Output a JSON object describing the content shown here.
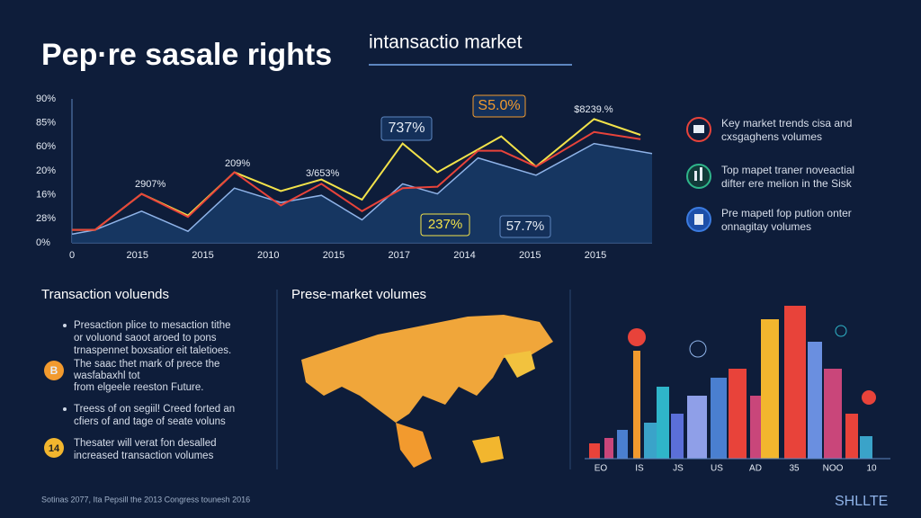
{
  "title": "Pep·re sasale rights",
  "subtitle": "intansactio market",
  "chart_data": {
    "type": "line",
    "xlim": [
      0,
      100
    ],
    "ylim": [
      0,
      100
    ],
    "x_labels": [
      "0",
      "2015",
      "2015",
      "2010",
      "2015",
      "2017",
      "2014",
      "2015",
      "2015"
    ],
    "y_labels": [
      "90%",
      "85%",
      "60%",
      "20%",
      "16%",
      "28%",
      "0%"
    ],
    "series": [
      {
        "color": "#f2e24a",
        "x": [
          0,
          4,
          12,
          20,
          28,
          36,
          43,
          50,
          57,
          63,
          74,
          80,
          90,
          98
        ],
        "values": [
          9,
          9,
          34,
          19,
          49,
          36,
          44,
          30,
          69,
          49,
          74,
          53,
          86,
          75
        ]
      },
      {
        "color": "#e8433a",
        "x": [
          0,
          4,
          12,
          20,
          28,
          36,
          43,
          50,
          57,
          63,
          70,
          74,
          80,
          90,
          98
        ],
        "values": [
          9,
          9,
          34,
          18,
          49,
          26,
          41,
          22,
          38,
          39,
          64,
          64,
          53,
          77,
          72
        ]
      },
      {
        "color": "#8fb3e8",
        "fill": "#173a66",
        "area": true,
        "x": [
          0,
          4,
          12,
          20,
          28,
          36,
          43,
          50,
          57,
          63,
          70,
          80,
          90,
          100
        ],
        "values": [
          6,
          9,
          22,
          8,
          38,
          28,
          33,
          16,
          41,
          34,
          59,
          47,
          69,
          62
        ]
      }
    ],
    "annotations": [
      "2907%",
      "209%",
      "3/653%",
      "737%",
      "S5.0%",
      "$8239.%",
      "237%",
      "57.7%"
    ]
  },
  "legend_notes": [
    [
      "Key market trends cisa and",
      "cxsgaghens volumes"
    ],
    [
      "Top mapet traner noveactial",
      "difter ere melion in the Sisk"
    ],
    [
      "Pre mapetl fop pution onter",
      "onnagitay volumes"
    ]
  ],
  "left_section": {
    "heading": "Transaction voluends",
    "items": [
      {
        "lines": [
          "Presaction plice to mesaction tithe",
          "or voluond saoot aroed to pons",
          "trnaspennet boxsatior eit taletioes."
        ]
      },
      {
        "badge": "B",
        "lines": [
          "The saac thet mark of prece the",
          "wasfabaxhl tot",
          "from elgeele reeston Future."
        ]
      },
      {
        "lines": [
          "Treess of on segiil! Creed forted an",
          "cfiers of and tage of seate voluns"
        ]
      },
      {
        "badge": "14",
        "lines": [
          "Thesater will verat fon desalled",
          "increased transaction volumes"
        ]
      }
    ]
  },
  "map_section": {
    "heading": "Prese-market volumes"
  },
  "skyline_labels": [
    "EO",
    "IS",
    "JS",
    "US",
    "AD",
    "35",
    "NOO",
    "10"
  ],
  "footer": "Sotinas 2077, Ita Pepsill the 2013 Congress tounesh 2016",
  "logo": "SHLLTE"
}
